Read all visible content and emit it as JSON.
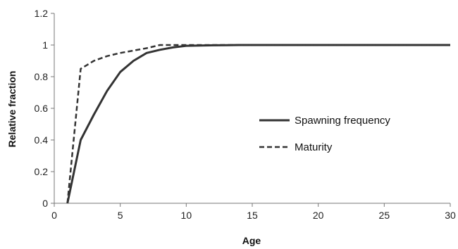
{
  "chart_data": {
    "type": "line",
    "title": "",
    "xlabel": "Age",
    "ylabel": "Relative fraction",
    "xlim": [
      0,
      30
    ],
    "ylim": [
      0,
      1.2
    ],
    "xticks": [
      0,
      5,
      10,
      15,
      20,
      25,
      30
    ],
    "yticks": [
      0,
      0.2,
      0.4,
      0.6,
      0.8,
      1,
      1.2
    ],
    "xtick_labels": [
      "0",
      "5",
      "10",
      "15",
      "20",
      "25",
      "30"
    ],
    "ytick_labels": [
      "0",
      "0.2",
      "0.4",
      "0.6",
      "0.8",
      "1",
      "1.2"
    ],
    "grid": false,
    "legend_position": "center-right",
    "series": [
      {
        "name": "Spawning frequency",
        "style": "solid",
        "color": "#333333",
        "x": [
          1,
          2,
          3,
          4,
          5,
          6,
          7,
          8,
          9,
          10,
          11,
          12,
          13,
          14,
          15,
          16,
          17,
          18,
          19,
          20,
          21,
          22,
          23,
          24,
          25,
          26,
          27,
          28,
          29,
          30
        ],
        "y": [
          0,
          0.4,
          0.56,
          0.71,
          0.83,
          0.9,
          0.95,
          0.97,
          0.985,
          0.995,
          0.997,
          0.998,
          0.999,
          1,
          1,
          1,
          1,
          1,
          1,
          1,
          1,
          1,
          1,
          1,
          1,
          1,
          1,
          1,
          1,
          1
        ]
      },
      {
        "name": "Maturity",
        "style": "dashed",
        "color": "#333333",
        "x": [
          1,
          2,
          3,
          4,
          5,
          6,
          7,
          8,
          9,
          10,
          11,
          12,
          13,
          14,
          15,
          16,
          17,
          18,
          19,
          20,
          21,
          22,
          23,
          24,
          25,
          26,
          27,
          28,
          29,
          30
        ],
        "y": [
          0,
          0.85,
          0.9,
          0.93,
          0.95,
          0.965,
          0.98,
          1,
          1,
          1,
          1,
          1,
          1,
          1,
          1,
          1,
          1,
          1,
          1,
          1,
          1,
          1,
          1,
          1,
          1,
          1,
          1,
          1,
          1,
          1
        ]
      }
    ]
  }
}
